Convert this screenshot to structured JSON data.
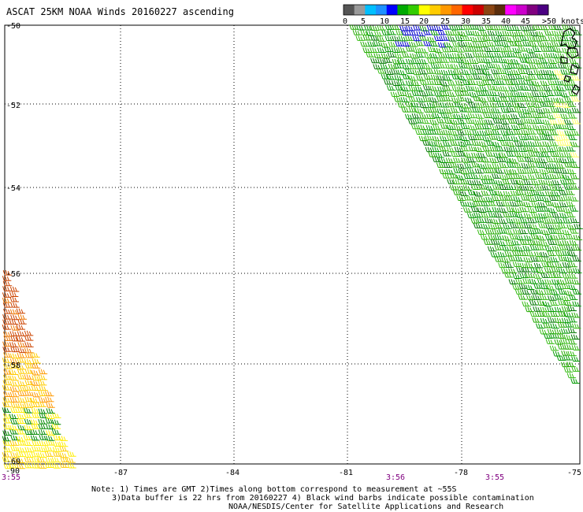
{
  "title": "ASCAT 25KM NOAA Winds 20160227 ascending",
  "legend": {
    "labels": [
      "0",
      "5",
      "10",
      "15",
      "20",
      "25",
      "30",
      "35",
      "40",
      "45",
      ">50 knots"
    ],
    "colors": [
      "#555555",
      "#9a9a9a",
      "#00bfff",
      "#1e90ff",
      "#0000ff",
      "#00aa00",
      "#33cc00",
      "#ffff00",
      "#ffcc00",
      "#ff9900",
      "#ff6600",
      "#ff0000",
      "#cc0000",
      "#8b4513",
      "#5a2d0c",
      "#ff00ff",
      "#cc00cc",
      "#800080",
      "#4b0082"
    ]
  },
  "axes": {
    "lat_labels": [
      "-50",
      "-52",
      "-54",
      "-56",
      "-58",
      "-60"
    ],
    "lon_labels": [
      "-87",
      "-84",
      "-81",
      "-78",
      "-75"
    ],
    "lon_extra_label": "-90"
  },
  "times": [
    "3:55",
    "3:56",
    "3:55"
  ],
  "notes": {
    "line1": "Note: 1) Times are GMT 2)Times along bottom correspond to measurement at ~55S",
    "line2": "3)Data buffer is 22 hrs from 20160227 4) Black wind barbs indicate possible contamination",
    "line3": "NOAA/NESDIS/Center for Satellite Applications and Research"
  }
}
